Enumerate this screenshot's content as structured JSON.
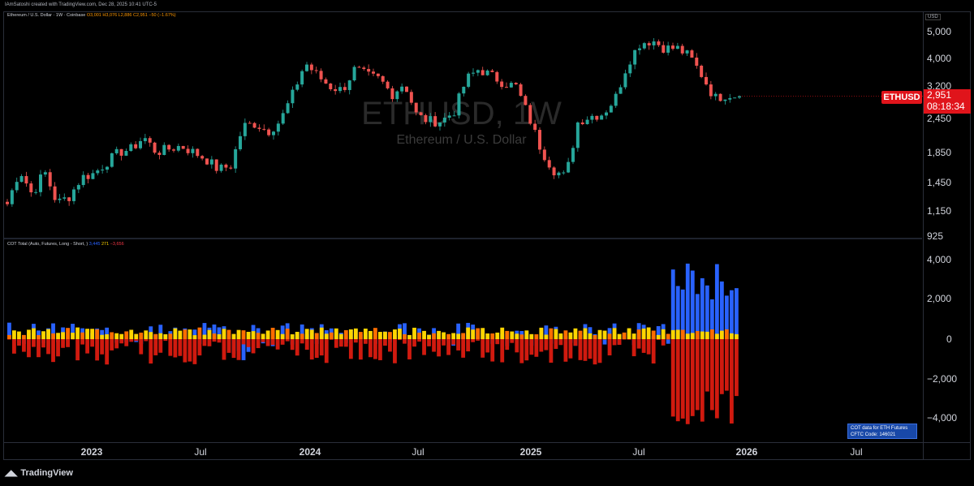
{
  "header": {
    "attribution": "IAmSatoshi created with TradingView.com, Dec 28, 2025 10:41 UTC-5"
  },
  "price_pane": {
    "legend_title": "Ethereum / U.S. Dollar · 1W · Coinbase",
    "legend_ohlc": "O3,001 H3,076 L2,886 C2,951 −50 (−1.67%)",
    "watermark_symbol": "ETHUSD, 1W",
    "watermark_name": "Ethereum / U.S. Dollar",
    "currency": "USD",
    "y_ticks": [
      "5,000",
      "4,000",
      "3,200",
      "2,450",
      "1,850",
      "1,450",
      "1,150",
      "925"
    ],
    "symbol_tag": "ETHUSD",
    "last_price": "2,951",
    "countdown": "08:18:34"
  },
  "cot_pane": {
    "legend_title": "COT Total (Auto, Futures, Long - Short, )",
    "legend_v1": "3,445",
    "legend_v2": "271",
    "legend_v3": "−3,656",
    "y_ticks": [
      "4,000",
      "2,000",
      "0",
      "−2,000",
      "−4,000"
    ],
    "info_line1": "COT data for ETH Futures",
    "info_line2": "CFTC Code: 146021"
  },
  "time_axis": {
    "labels": [
      "2023",
      "Jul",
      "2024",
      "Jul",
      "2025",
      "Jul",
      "2026",
      "Jul"
    ]
  },
  "footer": {
    "brand": "TradingView"
  },
  "chart_data": [
    {
      "type": "candlestick",
      "title": "ETHUSD, 1W",
      "y_scale": "log",
      "ylim": [
        925,
        5300
      ],
      "close_path_weekly_estimate": [
        1200,
        1600,
        1300,
        1580,
        1210,
        1280,
        1500,
        1550,
        1700,
        1850,
        1900,
        2100,
        1850,
        1900,
        1950,
        1850,
        1750,
        1600,
        1650,
        2300,
        2350,
        2200,
        2400,
        3000,
        3900,
        3500,
        3200,
        3100,
        3700,
        3500,
        3400,
        3000,
        3300,
        2500,
        2400,
        2400,
        2600,
        3400,
        3700,
        3500,
        3300,
        3200,
        2500,
        1900,
        1600,
        1500,
        2400,
        2500,
        2550,
        2900,
        3900,
        4600,
        4700,
        4400,
        4400,
        4100,
        3500,
        2900,
        3000,
        2951
      ],
      "last_close": 2951
    },
    {
      "type": "bar",
      "title": "COT Total (Auto, Futures, Long - Short, )",
      "ylim": [
        -5000,
        5000
      ],
      "series": [
        {
          "name": "3,445",
          "color": "#2962ff"
        },
        {
          "name": "271",
          "color": "#ffd600"
        },
        {
          "name": "−3,656",
          "color": "#f23645"
        }
      ],
      "final_values": [
        3445,
        271,
        -3656
      ]
    }
  ],
  "colors": {
    "up": "#26a69a",
    "down": "#ef5350",
    "cot_blue": "#2962ff",
    "cot_red": "#d01a0f",
    "cot_yellow": "#ffd600",
    "cot_orange": "#ff6d00",
    "tag_red": "#e0141b"
  }
}
